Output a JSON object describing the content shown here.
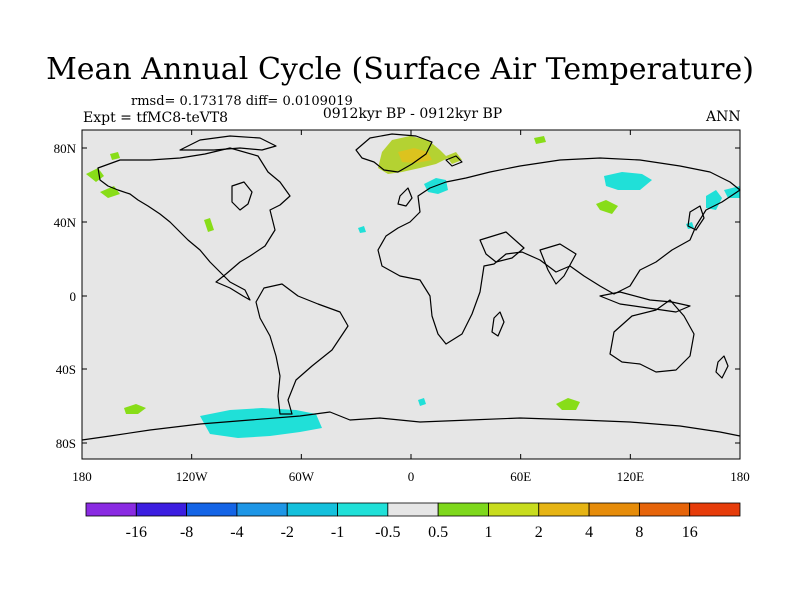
{
  "title": "Mean Annual Cycle (Surface Air Temperature)",
  "stats": "rmsd= 0.173178 diff= 0.0109019",
  "experiment": "Expt = tfMC8-teVT8",
  "period": "0912kyr BP - 0912kyr BP",
  "season": "ANN",
  "map": {
    "background_color": "#e6e6e6",
    "coastline_color": "#000000",
    "lat_labels": [
      "80N",
      "40N",
      "0",
      "40S",
      "80S"
    ],
    "lon_labels": [
      "180",
      "120W",
      "60W",
      "0",
      "60E",
      "120E",
      "180"
    ]
  },
  "anomaly_regions": [
    {
      "name": "greenland-positive",
      "level": "1 to 2",
      "color": "#b4d232"
    },
    {
      "name": "greenland-core",
      "level": "2 to 4",
      "color": "#dcc31e"
    },
    {
      "name": "scandinavia-negative",
      "level": "-1 to -0.5",
      "color": "#20e0d8"
    },
    {
      "name": "siberia-negative",
      "level": "-1 to -0.5",
      "color": "#20e0d8"
    },
    {
      "name": "antarctic-negative",
      "level": "-1 to -0.5",
      "color": "#20e0d8"
    },
    {
      "name": "southern-ocean-positive",
      "level": "0.5 to 1",
      "color": "#88dd18"
    }
  ],
  "colorbar": {
    "colors": [
      "#8a2be2",
      "#3c1ee0",
      "#1464e6",
      "#1e96e6",
      "#14c0dc",
      "#20e0d8",
      "#e6e6e6",
      "#7ed81c",
      "#c8dc1e",
      "#e6b414",
      "#e68c0a",
      "#e6640a",
      "#e63c0a"
    ],
    "labels": [
      "-16",
      "-8",
      "-4",
      "-2",
      "-1",
      "-0.5",
      "0.5",
      "1",
      "2",
      "4",
      "8",
      "16"
    ]
  }
}
